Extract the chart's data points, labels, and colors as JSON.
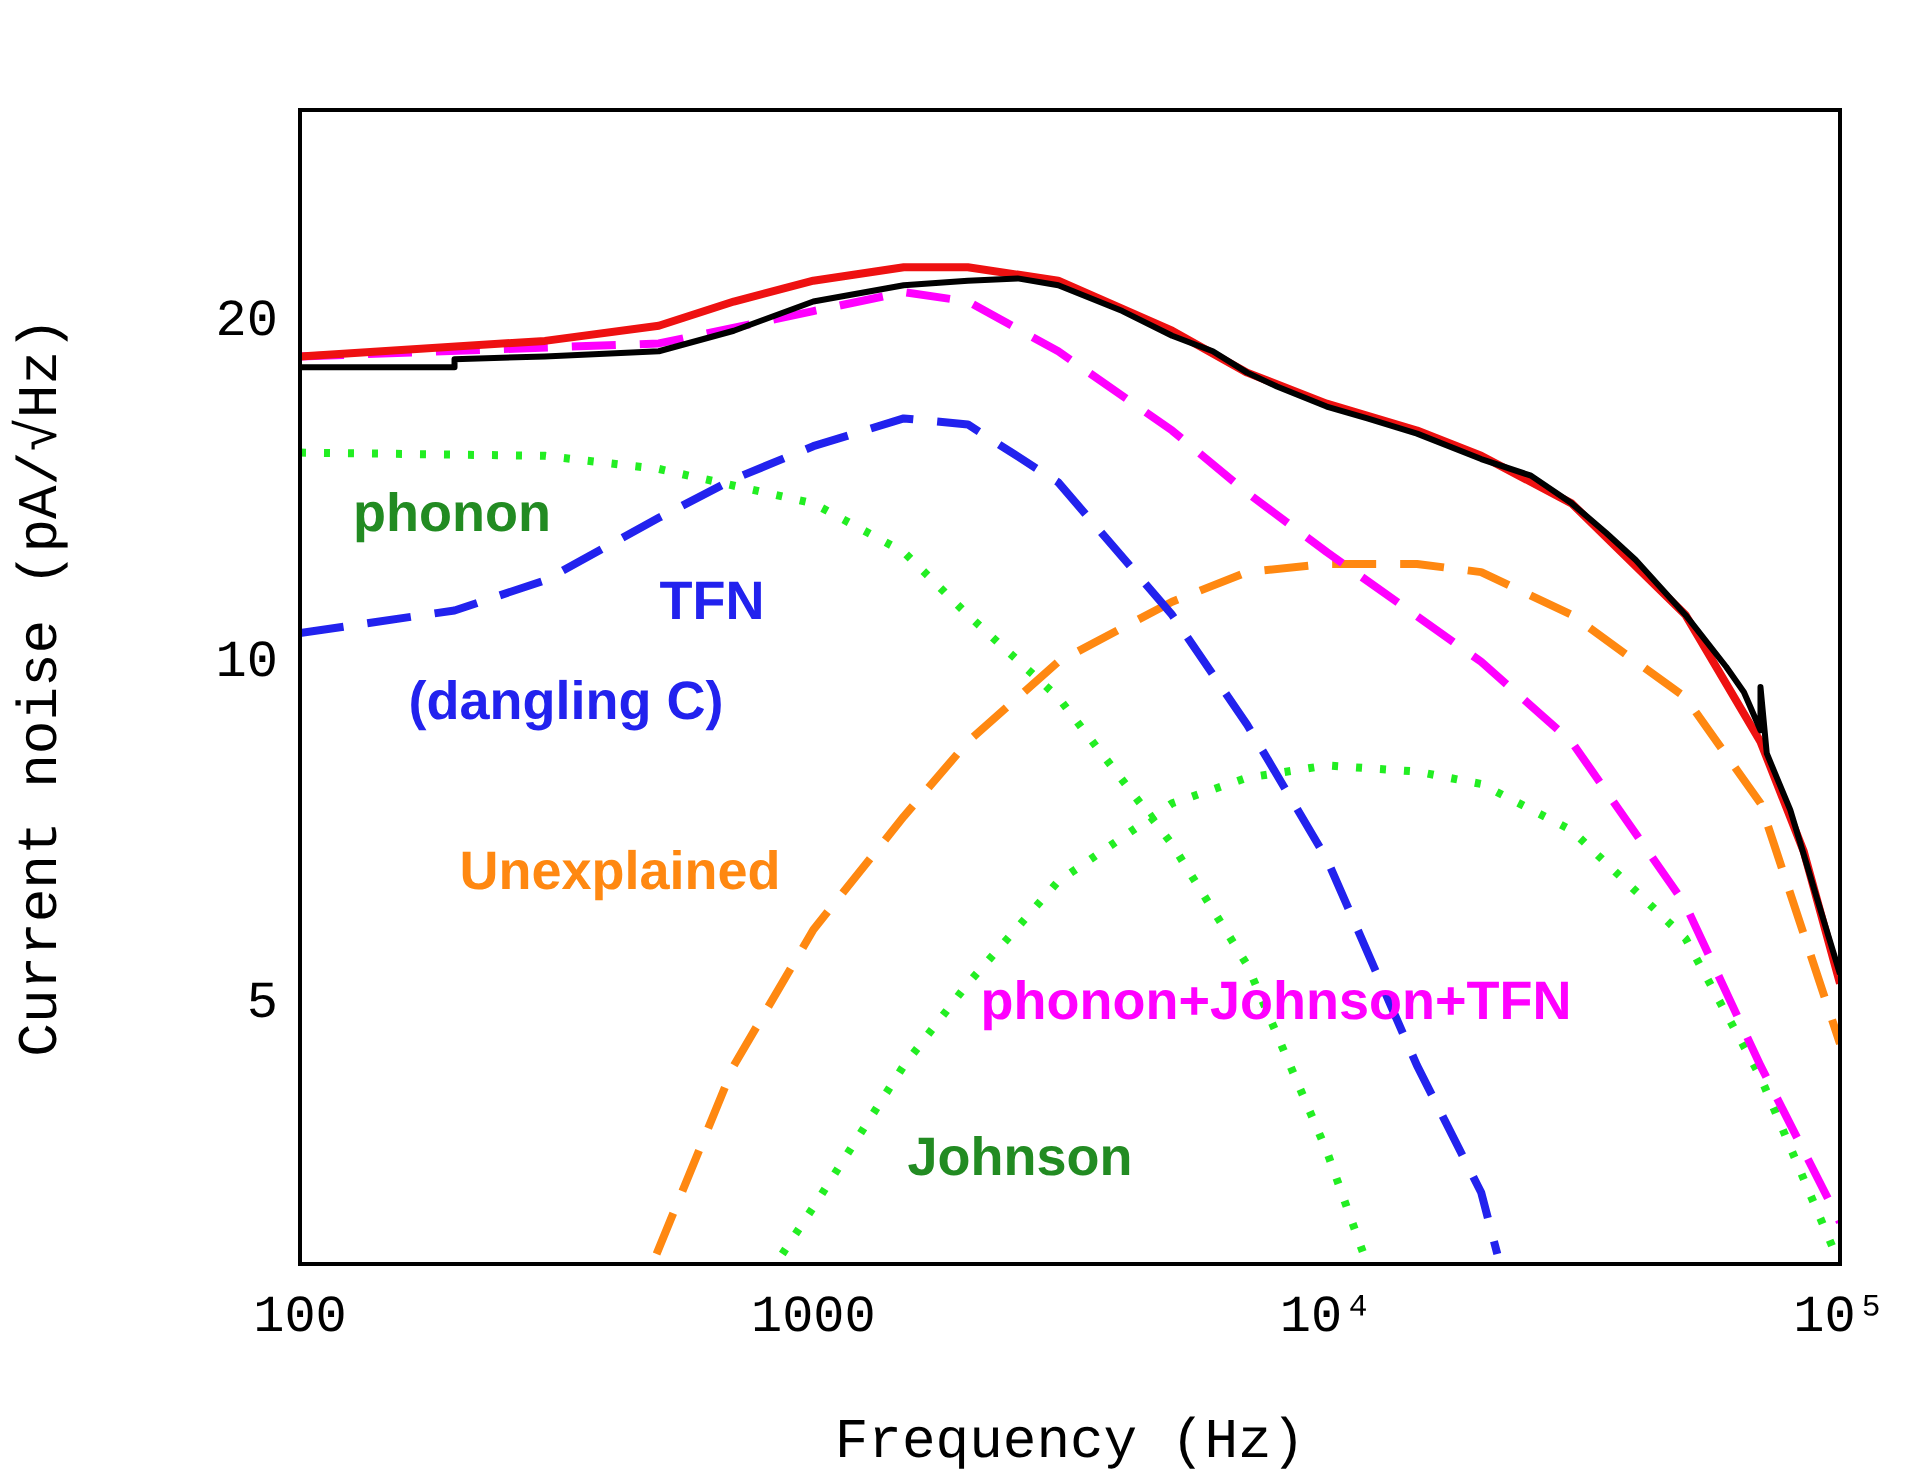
{
  "chart_data": {
    "type": "line",
    "xlabel": "Frequency (Hz)",
    "ylabel": "Current noise (pA/√Hz)",
    "log": "xy",
    "xlim": [
      100,
      100000
    ],
    "ylim": [
      2.94,
      30.7
    ],
    "xticks": [
      100,
      1000,
      {
        "value": 10000,
        "label": "10⁴"
      },
      {
        "value": 100000,
        "label": "10⁵"
      }
    ],
    "yticks": [
      5,
      10,
      20
    ],
    "grid": false,
    "legend": false,
    "marker": "none",
    "series": [
      {
        "color": "#000000",
        "line_style": "solid",
        "x": [
          100,
          200,
          200,
          300,
          500,
          700,
          1000,
          1500,
          2000,
          2500,
          3000,
          4000,
          5000,
          6000,
          7000,
          8000,
          10000,
          12000,
          15000,
          20000,
          25000,
          30000,
          35000,
          40000,
          50000,
          60000,
          65000,
          70000,
          70000,
          72000,
          80000,
          90000,
          100000
        ],
        "values": [
          18.2,
          18.2,
          18.5,
          18.6,
          18.8,
          19.6,
          20.8,
          21.5,
          21.7,
          21.8,
          21.5,
          20.4,
          19.4,
          18.8,
          18.0,
          17.5,
          16.8,
          16.4,
          15.9,
          15.1,
          14.6,
          13.8,
          13.0,
          12.3,
          11.0,
          9.9,
          9.4,
          8.7,
          9.5,
          8.3,
          7.4,
          6.2,
          5.3
        ]
      },
      {
        "color": "#ee1111",
        "line_style": "solid",
        "x": [
          100,
          300,
          500,
          700,
          1000,
          1500,
          2000,
          3000,
          5000,
          7000,
          10000,
          15000,
          20000,
          30000,
          50000,
          70000,
          85000,
          100000
        ],
        "values": [
          18.6,
          19.2,
          19.8,
          20.8,
          21.7,
          22.3,
          22.3,
          21.7,
          19.6,
          18.0,
          16.9,
          16.0,
          15.2,
          13.8,
          11.0,
          8.5,
          6.8,
          5.2
        ]
      },
      {
        "name": "phonon+Johnson+TFN",
        "color": "#ff00ff",
        "line_style": "dashed",
        "x": [
          100,
          500,
          1000,
          1500,
          2000,
          3000,
          5000,
          7000,
          10000,
          20000,
          30000,
          50000,
          70000,
          100000
        ],
        "values": [
          18.6,
          19.1,
          20.4,
          21.2,
          20.8,
          18.8,
          16.0,
          14.1,
          12.5,
          10.0,
          8.5,
          6.1,
          4.4,
          3.2
        ]
      },
      {
        "name": "TFN (dangling C)",
        "color": "#2222ee",
        "line_style": "dashed",
        "x": [
          100,
          200,
          300,
          500,
          700,
          1000,
          1500,
          2000,
          3000,
          5000,
          7000,
          10000,
          15000,
          20000,
          21500
        ],
        "values": [
          10.6,
          11.1,
          11.8,
          13.4,
          14.5,
          15.5,
          16.4,
          16.2,
          14.4,
          11.0,
          8.8,
          6.7,
          4.4,
          3.4,
          3.0
        ]
      },
      {
        "name": "phonon",
        "color": "#22ee22",
        "line_style": "dotted",
        "x": [
          100,
          300,
          500,
          1000,
          1500,
          2000,
          3000,
          5000,
          7000,
          10000,
          11800
        ],
        "values": [
          15.3,
          15.2,
          14.8,
          13.8,
          12.5,
          11.0,
          9.3,
          6.9,
          5.4,
          3.7,
          3.0
        ]
      },
      {
        "name": "Johnson",
        "color": "#22ee22",
        "line_style": "dotted",
        "x": [
          870,
          1000,
          1500,
          2000,
          3000,
          5000,
          7000,
          10000,
          15000,
          20000,
          30000,
          50000,
          70000,
          98000
        ],
        "values": [
          3.0,
          3.3,
          4.4,
          5.2,
          6.4,
          7.5,
          7.9,
          8.1,
          8.0,
          7.8,
          7.1,
          5.7,
          4.3,
          3.0
        ]
      },
      {
        "name": "Unexplained",
        "color": "#ff8811",
        "line_style": "dashed",
        "x": [
          495,
          700,
          1000,
          1500,
          2000,
          3000,
          5000,
          7000,
          10000,
          15000,
          20000,
          30000,
          50000,
          70000,
          100000
        ],
        "values": [
          3.0,
          4.4,
          5.8,
          7.3,
          8.5,
          10.0,
          11.3,
          12.0,
          12.2,
          12.2,
          12.0,
          11.0,
          9.3,
          7.5,
          4.6
        ]
      }
    ]
  }
}
